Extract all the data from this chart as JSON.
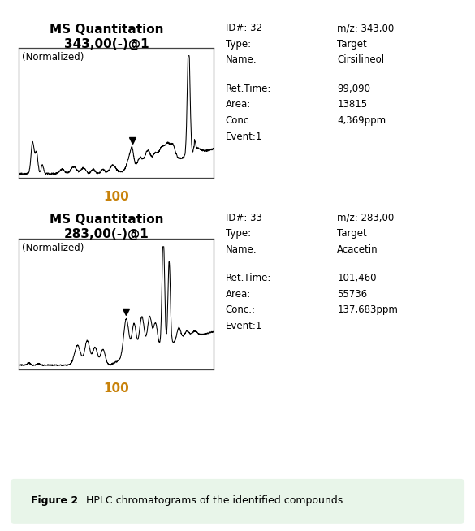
{
  "panel1": {
    "title_line1": "MS Quantitation",
    "title_line2": "343,00(-)@1",
    "label_normalized": "(Normalized)",
    "xlabel": "100",
    "info_left_labels": [
      "ID#: 32",
      "Type:",
      "Name:",
      "",
      "Ret.Time:",
      "Area:",
      "Conc.:",
      "Event:1"
    ],
    "info_right_values": [
      "",
      "Target",
      "Cirsilineol",
      "",
      "99,090",
      "13815",
      "4,369ppm",
      ""
    ],
    "mz_label": "m/z: 343,00"
  },
  "panel2": {
    "title_line1": "MS Quantitation",
    "title_line2": "283,00(-)@1",
    "label_normalized": "(Normalized)",
    "xlabel": "100",
    "info_left_labels": [
      "ID#: 33",
      "Type:",
      "Name:",
      "",
      "Ret.Time:",
      "Area:",
      "Conc.:",
      "Event:1"
    ],
    "info_right_values": [
      "",
      "Target",
      "Acacetin",
      "",
      "101,460",
      "55736",
      "137,683ppm",
      ""
    ],
    "mz_label": "m/z: 283,00"
  },
  "figure_caption_bold": "Figure 2",
  "figure_caption_rest": "   HPLC chromatograms of the identified compounds",
  "bg_color": "#ffffff",
  "border_color": "#6db86d",
  "caption_bg": "#e8f5e9",
  "plot_line_color": "#000000",
  "text_color": "#000000",
  "xlabel_color": "#c8820a"
}
